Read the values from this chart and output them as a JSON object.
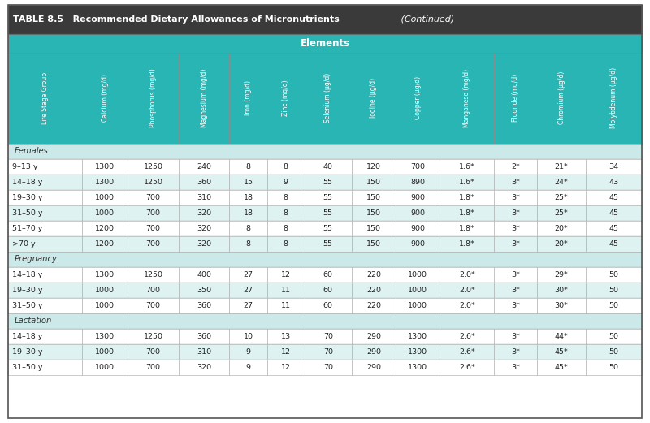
{
  "title_bold": "TABLE 8.5   Recommended Dietary Allowances of Micronutrients",
  "title_italic": " (Continued)",
  "section_header": "Elements",
  "col_headers": [
    "Life Stage Group",
    "Calcium (mg/d)",
    "Phosphorus (mg/d)",
    "Magnesium (mg/d)",
    "Iron (mg/d)",
    "Zinc (mg/d)",
    "Selenium (μg/d)",
    "Iodine (μg/d)",
    "Copper (μg/d)",
    "Manganese (mg/d)",
    "Fluoride (mg/d)",
    "Chromium (μg/d)",
    "Molybdenum (μg/d)"
  ],
  "sections": [
    {
      "name": "Females",
      "rows": [
        [
          "9–13 y",
          "1300",
          "1250",
          "240",
          "8",
          "8",
          "40",
          "120",
          "700",
          "1.6*",
          "2*",
          "21*",
          "34"
        ],
        [
          "14–18 y",
          "1300",
          "1250",
          "360",
          "15",
          "9",
          "55",
          "150",
          "890",
          "1.6*",
          "3*",
          "24*",
          "43"
        ],
        [
          "19–30 y",
          "1000",
          "700",
          "310",
          "18",
          "8",
          "55",
          "150",
          "900",
          "1.8*",
          "3*",
          "25*",
          "45"
        ],
        [
          "31–50 y",
          "1000",
          "700",
          "320",
          "18",
          "8",
          "55",
          "150",
          "900",
          "1.8*",
          "3*",
          "25*",
          "45"
        ],
        [
          "51–70 y",
          "1200",
          "700",
          "320",
          "8",
          "8",
          "55",
          "150",
          "900",
          "1.8*",
          "3*",
          "20*",
          "45"
        ],
        [
          ">70 y",
          "1200",
          "700",
          "320",
          "8",
          "8",
          "55",
          "150",
          "900",
          "1.8*",
          "3*",
          "20*",
          "45"
        ]
      ]
    },
    {
      "name": "Pregnancy",
      "rows": [
        [
          "14–18 y",
          "1300",
          "1250",
          "400",
          "27",
          "12",
          "60",
          "220",
          "1000",
          "2.0*",
          "3*",
          "29*",
          "50"
        ],
        [
          "19–30 y",
          "1000",
          "700",
          "350",
          "27",
          "11",
          "60",
          "220",
          "1000",
          "2.0*",
          "3*",
          "30*",
          "50"
        ],
        [
          "31–50 y",
          "1000",
          "700",
          "360",
          "27",
          "11",
          "60",
          "220",
          "1000",
          "2.0*",
          "3*",
          "30*",
          "50"
        ]
      ]
    },
    {
      "name": "Lactation",
      "rows": [
        [
          "14–18 y",
          "1300",
          "1250",
          "360",
          "10",
          "13",
          "70",
          "290",
          "1300",
          "2.6*",
          "3*",
          "44*",
          "50"
        ],
        [
          "19–30 y",
          "1000",
          "700",
          "310",
          "9",
          "12",
          "70",
          "290",
          "1300",
          "2.6*",
          "3*",
          "45*",
          "50"
        ],
        [
          "31–50 y",
          "1000",
          "700",
          "320",
          "9",
          "12",
          "70",
          "290",
          "1300",
          "2.6*",
          "3*",
          "45*",
          "50"
        ]
      ]
    }
  ],
  "title_bg": "#3a3a3a",
  "title_text_color": "#ffffff",
  "teal_bg": "#2ab5b5",
  "col_header_bg": "#2ab5b5",
  "col_header_text_color": "#ffffff",
  "section_label_bg": "#cce9e9",
  "row_bg_odd": "#dff2f2",
  "row_bg_even": "#ffffff",
  "border_color": "#aaaaaa",
  "text_color": "#222222",
  "col_widths_rel": [
    1.35,
    0.82,
    0.92,
    0.92,
    0.68,
    0.68,
    0.85,
    0.8,
    0.8,
    0.98,
    0.78,
    0.88,
    1.02
  ]
}
